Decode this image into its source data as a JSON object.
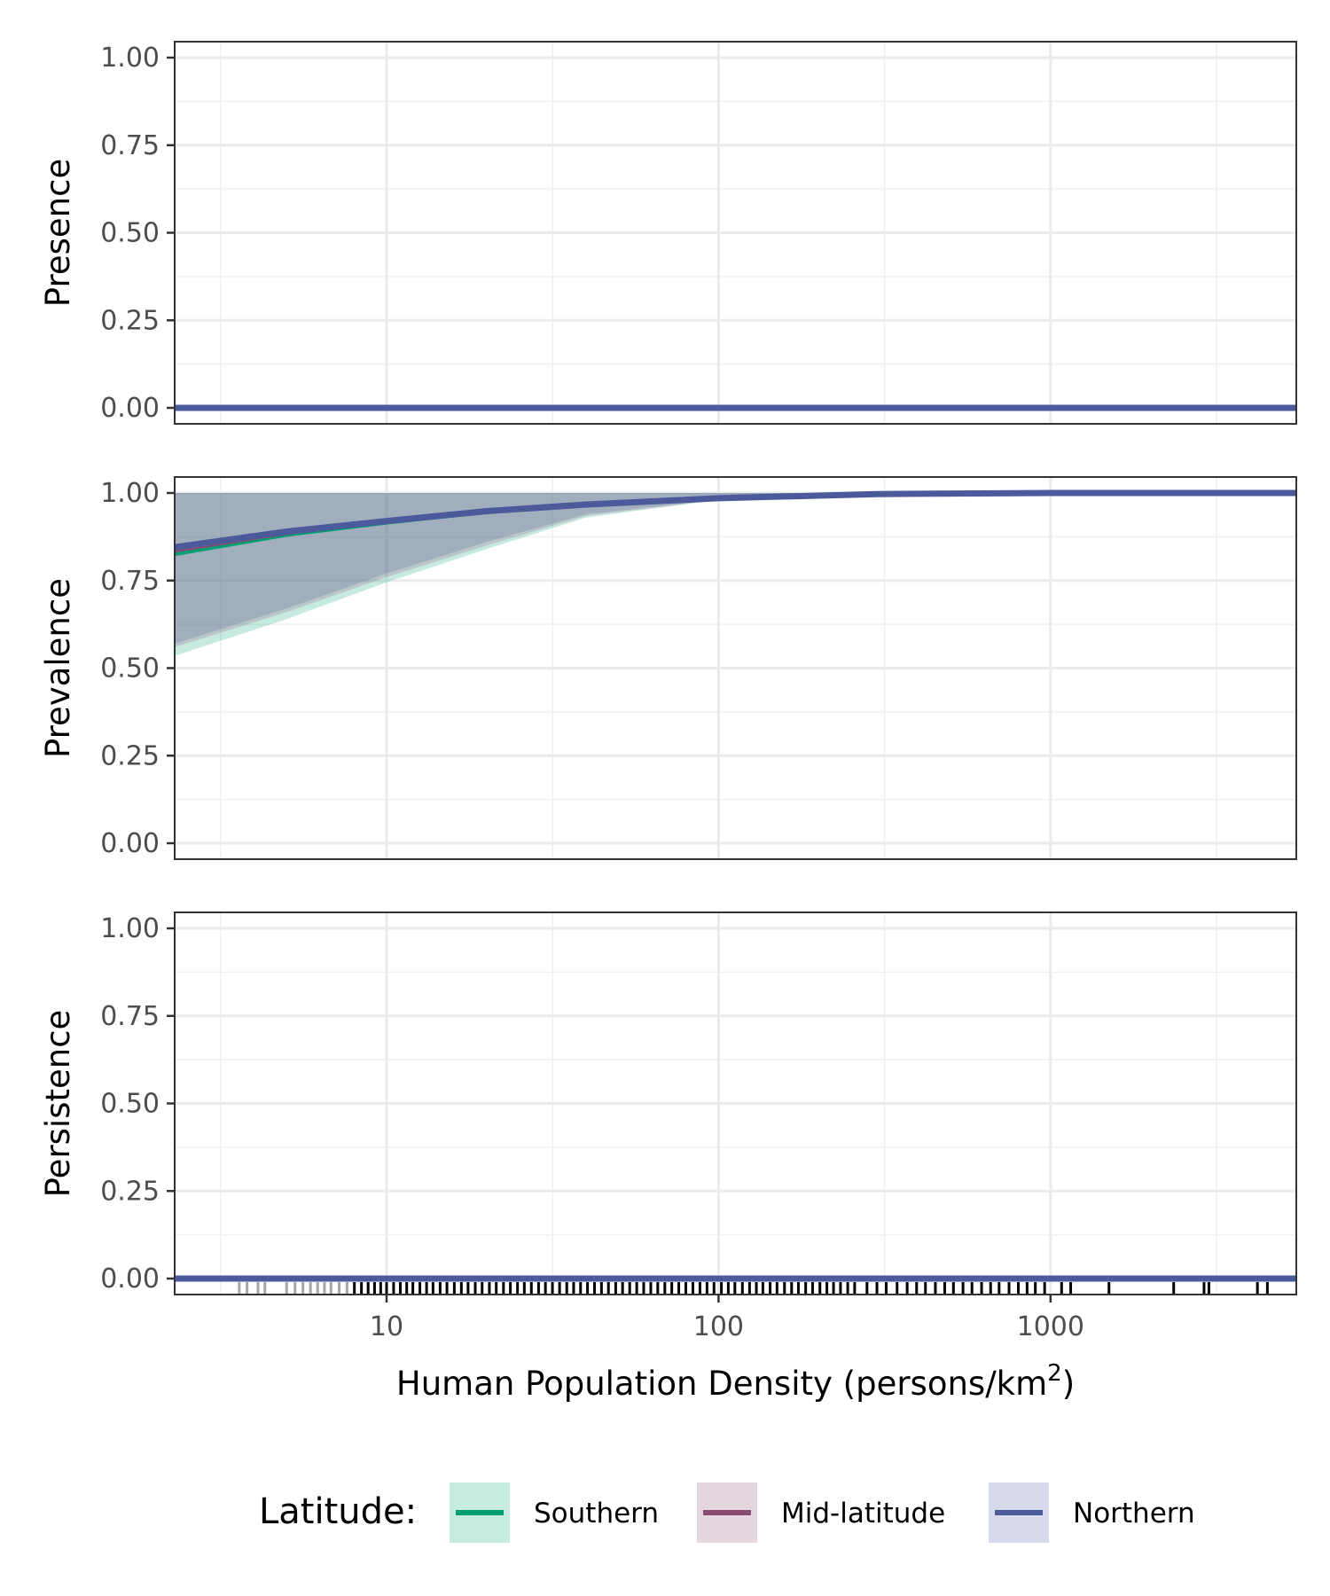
{
  "chart_data": {
    "type": "line",
    "x_scale": "log",
    "xlim": [
      2.3,
      5500
    ],
    "xlabel": "Human Population Density (persons/km",
    "xlabel_sup": "2",
    "xlabel_close": ")",
    "x_ticks": [
      10,
      100,
      1000
    ],
    "x_tick_labels": [
      "10",
      "100",
      "1000"
    ],
    "y_ticks": [
      0,
      0.25,
      0.5,
      0.75,
      1.0
    ],
    "y_tick_labels": [
      "0.00",
      "0.25",
      "0.50",
      "0.75",
      "1.00"
    ],
    "grid": true,
    "legend": {
      "title": "Latitude:",
      "position": "bottom",
      "entries": [
        {
          "name": "Southern",
          "color": "#009E73",
          "fill": "#c8ebe0"
        },
        {
          "name": "Mid-latitude",
          "color": "#8B4A72",
          "fill": "#e6d6e0"
        },
        {
          "name": "Northern",
          "color": "#4A5A9A",
          "fill": "#d6daea"
        }
      ]
    },
    "panels": [
      {
        "ylabel": "Presence",
        "ylim": [
          0,
          1
        ],
        "series": [
          {
            "name": "Southern",
            "x": [
              2.3,
              5500
            ],
            "y": [
              0,
              0
            ]
          },
          {
            "name": "Mid-latitude",
            "x": [
              2.3,
              5500
            ],
            "y": [
              0,
              0
            ]
          },
          {
            "name": "Northern",
            "x": [
              2.3,
              5500
            ],
            "y": [
              0,
              0
            ]
          }
        ]
      },
      {
        "ylabel": "Prevalence",
        "ylim": [
          0,
          1
        ],
        "series": [
          {
            "name": "Southern",
            "x": [
              2.3,
              5,
              10,
              20,
              40,
              100,
              300,
              1000,
              5500
            ],
            "y": [
              0.825,
              0.88,
              0.915,
              0.945,
              0.965,
              0.985,
              0.997,
              1.0,
              1.0
            ],
            "lower": [
              0.535,
              0.64,
              0.745,
              0.84,
              0.93,
              0.98,
              0.996,
              1.0,
              1.0
            ],
            "upper": [
              1.0,
              1.0,
              1.0,
              1.0,
              1.0,
              1.0,
              1.0,
              1.0,
              1.0
            ]
          },
          {
            "name": "Mid-latitude",
            "x": [
              2.3,
              5,
              10,
              20,
              40,
              100,
              300,
              1000,
              5500
            ],
            "y": [
              0.835,
              0.885,
              0.918,
              0.947,
              0.966,
              0.985,
              0.997,
              1.0,
              1.0
            ],
            "lower": [
              0.56,
              0.66,
              0.76,
              0.85,
              0.935,
              0.98,
              0.996,
              1.0,
              1.0
            ],
            "upper": [
              1.0,
              1.0,
              1.0,
              1.0,
              1.0,
              1.0,
              1.0,
              1.0,
              1.0
            ]
          },
          {
            "name": "Northern",
            "x": [
              2.3,
              5,
              10,
              20,
              40,
              100,
              300,
              1000,
              5500
            ],
            "y": [
              0.845,
              0.89,
              0.92,
              0.948,
              0.967,
              0.985,
              0.997,
              1.0,
              1.0
            ],
            "lower": [
              0.57,
              0.67,
              0.77,
              0.86,
              0.94,
              0.981,
              0.996,
              1.0,
              1.0
            ],
            "upper": [
              1.0,
              1.0,
              1.0,
              1.0,
              1.0,
              1.0,
              1.0,
              1.0,
              1.0
            ]
          }
        ]
      },
      {
        "ylabel": "Persistence",
        "ylim": [
          0,
          1
        ],
        "series": [
          {
            "name": "Southern",
            "x": [
              2.3,
              5500
            ],
            "y": [
              0,
              0
            ]
          },
          {
            "name": "Mid-latitude",
            "x": [
              2.3,
              5500
            ],
            "y": [
              0,
              0
            ]
          },
          {
            "name": "Northern",
            "x": [
              2.3,
              5500
            ],
            "y": [
              0,
              0
            ]
          }
        ],
        "rug": [
          3.6,
          3.8,
          4.1,
          4.3,
          5.0,
          5.3,
          5.6,
          5.9,
          6.2,
          6.5,
          6.8,
          7.2,
          7.6,
          8.0,
          8.4,
          8.8,
          9.2,
          9.6,
          10,
          10.5,
          11,
          11.5,
          12,
          12.6,
          13.2,
          13.8,
          14.5,
          15.2,
          16,
          16.8,
          17.6,
          18.5,
          19.4,
          20.4,
          21.4,
          22.5,
          23.6,
          24.8,
          26,
          27.3,
          28.7,
          30.1,
          31.6,
          33.2,
          34.9,
          36.6,
          38.4,
          40.3,
          42.3,
          44.4,
          46.6,
          49,
          51.4,
          54,
          56.7,
          59.5,
          62.5,
          65.6,
          68.9,
          72.3,
          75.9,
          79.7,
          83.7,
          87.9,
          92.3,
          96.9,
          102,
          107,
          112,
          118,
          124,
          130,
          136,
          143,
          150,
          158,
          166,
          174,
          183,
          192,
          202,
          212,
          222,
          233,
          245,
          257,
          280,
          300,
          320,
          345,
          370,
          395,
          420,
          450,
          480,
          510,
          545,
          580,
          620,
          660,
          700,
          750,
          800,
          850,
          900,
          960,
          1080,
          1150,
          1500,
          2350,
          2900,
          3000,
          4200,
          4500
        ]
      }
    ]
  }
}
